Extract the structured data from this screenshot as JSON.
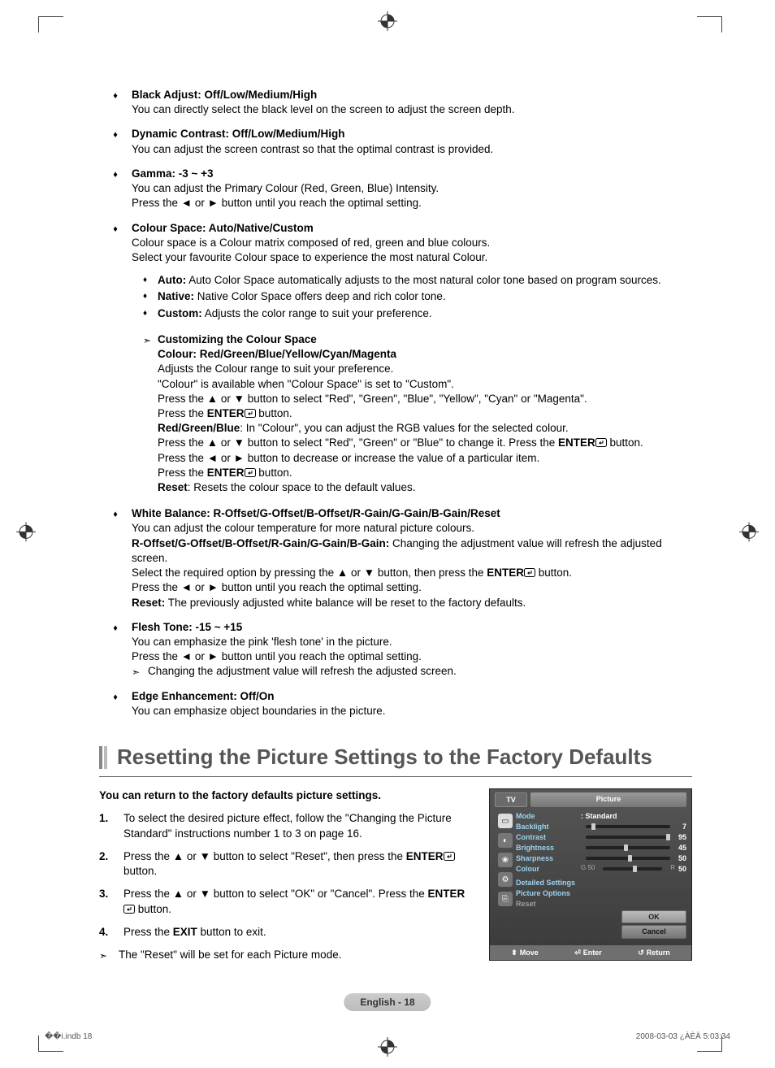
{
  "bullets": [
    {
      "title": "Black Adjust: Off/Low/Medium/High",
      "lines": [
        "You can directly select the black level on the screen to adjust the screen depth."
      ]
    },
    {
      "title": "Dynamic Contrast: Off/Low/Medium/High",
      "lines": [
        "You can adjust the screen contrast so that the optimal contrast is provided."
      ]
    },
    {
      "title": "Gamma: -3 ~ +3",
      "lines": [
        "You can adjust the Primary Colour (Red, Green, Blue) Intensity.",
        "Press the ◄ or ► button until you reach the optimal setting."
      ]
    },
    {
      "title": "Colour Space: Auto/Native/Custom",
      "lines": [
        "Colour space is a Colour matrix composed of red, green and blue colours.",
        "Select your favourite Colour space to experience the most natural Colour."
      ],
      "subitems": [
        {
          "label": "Auto:",
          "text": "Auto Color Space automatically adjusts to the most natural color tone based on program sources.",
          "wrap": true
        },
        {
          "label": "Native:",
          "text": "Native Color Space offers deep and rich color tone."
        },
        {
          "label": "Custom:",
          "text": "Adjusts the color range to suit your preference."
        }
      ],
      "customizing": {
        "heading": "Customizing the Colour Space",
        "lines": [
          {
            "b": "Colour: Red/Green/Blue/Yellow/Cyan/Magenta"
          },
          {
            "t": "Adjusts the Colour range to suit your preference."
          },
          {
            "t": "\"Colour\" is available when \"Colour Space\" is set to \"Custom\"."
          },
          {
            "t": "Press the ▲ or ▼ button to select \"Red\", \"Green\", \"Blue\", \"Yellow\", \"Cyan\" or \"Magenta\"."
          },
          {
            "enter_prefix": "Press the ",
            "enter_bold": "ENTER",
            "enter_suffix": " button."
          },
          {
            "mix": [
              {
                "b": "Red/Green/Blue"
              },
              {
                "t": ": In \"Colour\", you can adjust the RGB values for the selected colour."
              }
            ]
          },
          {
            "mix": [
              {
                "t": "Press the ▲ or ▼ button to select \"Red\", \"Green\" or \"Blue\" to change it. Press the "
              },
              {
                "b": "ENTER"
              },
              {
                "icn": true
              },
              {
                "t": " button."
              }
            ]
          },
          {
            "t": "Press the ◄ or ► button to decrease or increase the value of a particular item."
          },
          {
            "enter_prefix": "Press the ",
            "enter_bold": "ENTER",
            "enter_suffix": " button."
          },
          {
            "mix": [
              {
                "b": "Reset"
              },
              {
                "t": ": Resets the colour space to the default values."
              }
            ]
          }
        ]
      }
    },
    {
      "title": "White Balance: R-Offset/G-Offset/B-Offset/R-Gain/G-Gain/B-Gain/Reset",
      "lines": [
        "You can adjust the colour temperature for more natural picture colours."
      ],
      "extra": [
        {
          "mix": [
            {
              "b": "R-Offset/G-Offset/B-Offset/R-Gain/G-Gain/B-Gain:"
            },
            {
              "t": " Changing the adjustment value will refresh the adjusted screen."
            }
          ]
        },
        {
          "mix": [
            {
              "t": "Select the required option by pressing the ▲ or ▼ button, then press the "
            },
            {
              "b": "ENTER"
            },
            {
              "icn": true
            },
            {
              "t": " button."
            }
          ]
        },
        {
          "t": "Press the ◄ or ► button until you reach the optimal setting."
        },
        {
          "mix": [
            {
              "b": "Reset:"
            },
            {
              "t": " The previously adjusted white balance will be reset to the factory defaults."
            }
          ]
        }
      ]
    },
    {
      "title": "Flesh Tone: -15 ~ +15",
      "lines": [
        "You can emphasize the pink 'flesh tone' in the picture.",
        "Press the ◄ or ► button until you reach the optimal setting."
      ],
      "note": "Changing the adjustment value will refresh the adjusted screen."
    },
    {
      "title": "Edge Enhancement: Off/On",
      "lines": [
        "You can emphasize object boundaries in the picture."
      ]
    }
  ],
  "section_title": "Resetting the Picture Settings to the Factory Defaults",
  "reset_intro": "You can return to the factory defaults picture settings.",
  "steps": [
    {
      "n": "1.",
      "parts": [
        {
          "t": "To select the desired picture effect, follow the \"Changing the Picture Standard\" instructions number 1 to 3 on page 16."
        }
      ]
    },
    {
      "n": "2.",
      "parts": [
        {
          "t": "Press the ▲ or ▼ button to select \"Reset\", then press the "
        },
        {
          "b": "ENTER"
        },
        {
          "icn": true
        },
        {
          "t": " button."
        }
      ]
    },
    {
      "n": "3.",
      "parts": [
        {
          "t": "Press the ▲ or ▼ button to select \"OK\" or \"Cancel\". Press the "
        },
        {
          "b": "ENTER"
        },
        {
          "icn": true
        },
        {
          "t": " button."
        }
      ]
    },
    {
      "n": "4.",
      "parts": [
        {
          "t": "Press the "
        },
        {
          "b": "EXIT"
        },
        {
          "t": " button to exit."
        }
      ]
    }
  ],
  "reset_note": "The \"Reset\" will be set for each Picture mode.",
  "osd": {
    "tv": "TV",
    "title": "Picture",
    "mode_label": "Mode",
    "mode_value": ": Standard",
    "sliders": [
      {
        "label": "Backlight",
        "pct": 7,
        "val": "7"
      },
      {
        "label": "Contrast",
        "pct": 95,
        "val": "95"
      },
      {
        "label": "Brightness",
        "pct": 45,
        "val": "45"
      },
      {
        "label": "Sharpness",
        "pct": 50,
        "val": "50"
      },
      {
        "label": "Colour",
        "pct": 50,
        "val": "50",
        "g": "G  50",
        "r": "R"
      }
    ],
    "detailed": "Detailed Settings",
    "picture_options": "Picture Options",
    "reset": "Reset",
    "ok": "OK",
    "cancel": "Cancel",
    "move": "Move",
    "enter": "Enter",
    "return": "Return",
    "colors": {
      "label_active": "#9cd3f0",
      "label_dim": "#9f9f9f",
      "panel_bg": "#444444"
    }
  },
  "page_label": "English - 18",
  "footer_left": "��i.indb   18",
  "footer_right": "2008-03-03   ¿ÀÈÄ 5:03:34"
}
